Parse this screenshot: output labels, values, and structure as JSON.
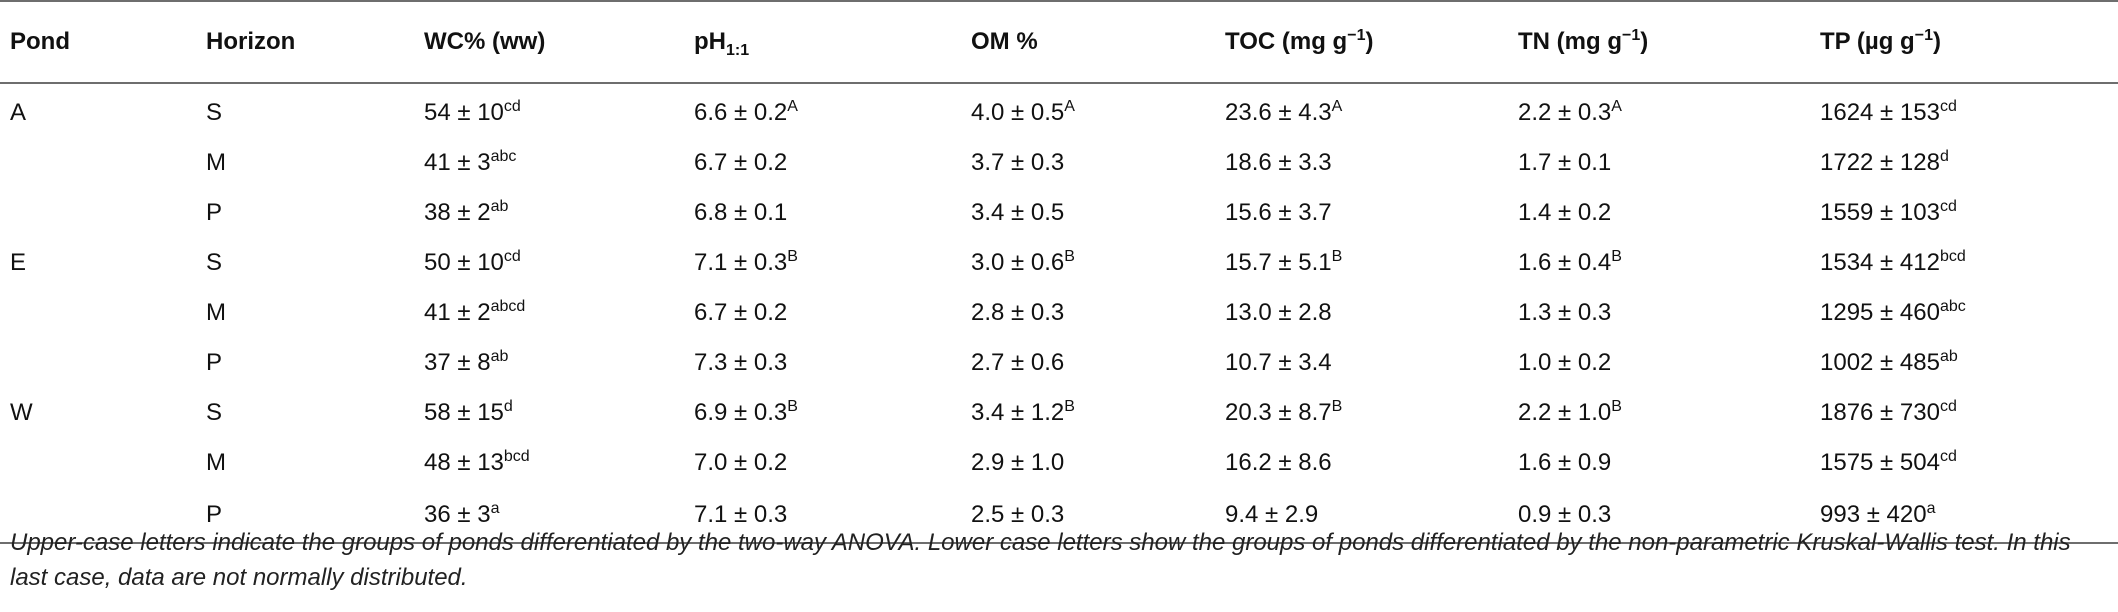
{
  "table": {
    "headers": [
      {
        "text": "Pond"
      },
      {
        "text": "Horizon"
      },
      {
        "text": "WC% (ww)"
      },
      {
        "text": "pH",
        "sub": "1:1"
      },
      {
        "text": "OM %"
      },
      {
        "text": "TOC (mg g",
        "sup": "−1",
        "after": ")"
      },
      {
        "text": "TN (mg g",
        "sup": "−1",
        "after": ")"
      },
      {
        "text": "TP (µg g",
        "sup": "−1",
        "after": ")"
      }
    ],
    "rows": [
      {
        "pond": "A",
        "horizon": "S",
        "cells": [
          {
            "v": "54 ± 10",
            "s": "cd"
          },
          {
            "v": "6.6 ± 0.2",
            "s": "A"
          },
          {
            "v": "4.0 ± 0.5",
            "s": "A"
          },
          {
            "v": "23.6 ± 4.3",
            "s": "A"
          },
          {
            "v": "2.2 ± 0.3",
            "s": "A"
          },
          {
            "v": "1624 ± 153",
            "s": "cd"
          }
        ]
      },
      {
        "pond": "",
        "horizon": "M",
        "cells": [
          {
            "v": "41 ± 3",
            "s": "abc"
          },
          {
            "v": "6.7 ± 0.2",
            "s": ""
          },
          {
            "v": "3.7 ± 0.3",
            "s": ""
          },
          {
            "v": "18.6 ± 3.3",
            "s": ""
          },
          {
            "v": "1.7 ± 0.1",
            "s": ""
          },
          {
            "v": "1722 ± 128",
            "s": "d"
          }
        ]
      },
      {
        "pond": "",
        "horizon": "P",
        "cells": [
          {
            "v": "38 ± 2",
            "s": "ab"
          },
          {
            "v": "6.8 ± 0.1",
            "s": ""
          },
          {
            "v": "3.4 ± 0.5",
            "s": ""
          },
          {
            "v": "15.6 ± 3.7",
            "s": ""
          },
          {
            "v": "1.4 ± 0.2",
            "s": ""
          },
          {
            "v": "1559 ± 103",
            "s": "cd"
          }
        ]
      },
      {
        "pond": "E",
        "horizon": "S",
        "cells": [
          {
            "v": "50 ± 10",
            "s": "cd"
          },
          {
            "v": "7.1 ± 0.3",
            "s": "B"
          },
          {
            "v": "3.0 ± 0.6",
            "s": "B"
          },
          {
            "v": "15.7 ± 5.1",
            "s": "B"
          },
          {
            "v": "1.6 ± 0.4",
            "s": "B"
          },
          {
            "v": "1534 ± 412",
            "s": "bcd"
          }
        ]
      },
      {
        "pond": "",
        "horizon": "M",
        "cells": [
          {
            "v": "41 ± 2",
            "s": "abcd"
          },
          {
            "v": "6.7 ± 0.2",
            "s": ""
          },
          {
            "v": "2.8 ± 0.3",
            "s": ""
          },
          {
            "v": "13.0 ± 2.8",
            "s": ""
          },
          {
            "v": "1.3 ± 0.3",
            "s": ""
          },
          {
            "v": "1295 ± 460",
            "s": "abc"
          }
        ]
      },
      {
        "pond": "",
        "horizon": "P",
        "cells": [
          {
            "v": "37 ± 8",
            "s": "ab"
          },
          {
            "v": "7.3 ± 0.3",
            "s": ""
          },
          {
            "v": "2.7 ± 0.6",
            "s": ""
          },
          {
            "v": "10.7 ± 3.4",
            "s": ""
          },
          {
            "v": "1.0 ± 0.2",
            "s": ""
          },
          {
            "v": "1002 ± 485",
            "s": "ab"
          }
        ]
      },
      {
        "pond": "W",
        "horizon": "S",
        "cells": [
          {
            "v": "58 ± 15",
            "s": "d"
          },
          {
            "v": "6.9 ± 0.3",
            "s": "B"
          },
          {
            "v": "3.4 ± 1.2",
            "s": "B"
          },
          {
            "v": "20.3 ± 8.7",
            "s": "B"
          },
          {
            "v": "2.2 ± 1.0",
            "s": "B"
          },
          {
            "v": "1876 ± 730",
            "s": "cd"
          }
        ]
      },
      {
        "pond": "",
        "horizon": "M",
        "cells": [
          {
            "v": "48 ± 13",
            "s": "bcd"
          },
          {
            "v": "7.0 ± 0.2",
            "s": ""
          },
          {
            "v": "2.9 ± 1.0",
            "s": ""
          },
          {
            "v": "16.2 ± 8.6",
            "s": ""
          },
          {
            "v": "1.6 ± 0.9",
            "s": ""
          },
          {
            "v": "1575 ± 504",
            "s": "cd"
          }
        ]
      },
      {
        "pond": "",
        "horizon": "P",
        "cells": [
          {
            "v": "36 ± 3",
            "s": "a"
          },
          {
            "v": "7.1 ± 0.3",
            "s": ""
          },
          {
            "v": "2.5 ± 0.3",
            "s": ""
          },
          {
            "v": "9.4 ± 2.9",
            "s": ""
          },
          {
            "v": "0.9 ± 0.3",
            "s": ""
          },
          {
            "v": "993 ± 420",
            "s": "a"
          }
        ]
      }
    ]
  },
  "footnote": "Upper-case letters indicate the groups of ponds differentiated by the two-way ANOVA. Lower case letters show the groups of ponds differentiated by the non-parametric Kruskal-Wallis test. In this last case, data are not normally distributed."
}
